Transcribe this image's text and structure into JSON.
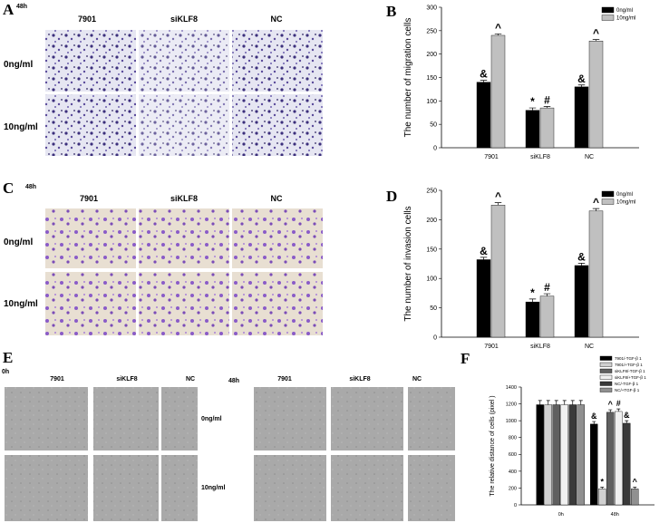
{
  "panel_labels": [
    "A",
    "B",
    "C",
    "D",
    "E",
    "F"
  ],
  "transwell_migration": {
    "time": "48h",
    "columns": [
      "7901",
      "siKLF8",
      "NC"
    ],
    "rows": [
      "0ng/ml",
      "10ng/ml"
    ]
  },
  "transwell_invasion": {
    "time": "48h",
    "columns": [
      "7901",
      "siKLF8",
      "NC"
    ],
    "rows": [
      "0ng/ml",
      "10ng/ml"
    ]
  },
  "wound_healing": {
    "times": [
      "0h",
      "48h"
    ],
    "columns": [
      "7901",
      "siKLF8",
      "NC"
    ],
    "rows": [
      "0ng/ml",
      "10ng/ml"
    ]
  },
  "chart_data": [
    {
      "type": "bar",
      "y_label": "The number of migration cells",
      "categories": [
        "7901",
        "siKLF8",
        "NC"
      ],
      "ylim": [
        0,
        300
      ],
      "yticks": [
        0,
        50,
        100,
        150,
        200,
        250,
        300
      ],
      "legend": "upper right",
      "series": [
        {
          "name": "0ng/ml",
          "color": "#000000",
          "values": [
            140,
            80,
            130
          ],
          "errors": [
            4,
            5,
            4
          ],
          "markers": [
            "&",
            "*",
            "&"
          ]
        },
        {
          "name": "10ng/ml",
          "color": "#c0c0c0",
          "values": [
            240,
            85,
            228
          ],
          "errors": [
            3,
            3,
            3
          ],
          "markers": [
            "^",
            "#",
            "^"
          ]
        }
      ]
    },
    {
      "type": "bar",
      "y_label": "The number of invasion cells",
      "categories": [
        "7901",
        "siKLF8",
        "NC"
      ],
      "ylim": [
        0,
        250
      ],
      "yticks": [
        0,
        50,
        100,
        150,
        200,
        250
      ],
      "legend": "upper right",
      "series": [
        {
          "name": "0ng/ml",
          "color": "#000000",
          "values": [
            132,
            60,
            122
          ],
          "errors": [
            4,
            5,
            4
          ],
          "markers": [
            "&",
            "*",
            "&"
          ]
        },
        {
          "name": "10ng/ml",
          "color": "#c0c0c0",
          "values": [
            225,
            70,
            215
          ],
          "errors": [
            4,
            4,
            4
          ],
          "markers": [
            "^",
            "#",
            "^"
          ]
        }
      ]
    },
    {
      "type": "bar",
      "y_label": "The relative distance of cells (pixel )",
      "categories": [
        "0h",
        "48h"
      ],
      "ylim": [
        0,
        1400
      ],
      "yticks": [
        0,
        200,
        400,
        600,
        800,
        1000,
        1200,
        1400
      ],
      "legend": "upper right",
      "series": [
        {
          "name": "7901/-TGF-β 1",
          "color": "#000000",
          "values": [
            1190,
            960
          ],
          "errors": [
            50,
            30
          ],
          "markers": [
            null,
            "&"
          ]
        },
        {
          "name": "7901/+TGF-β 1",
          "color": "#d0d0d0",
          "values": [
            1190,
            190
          ],
          "errors": [
            50,
            20
          ],
          "markers": [
            null,
            "*"
          ]
        },
        {
          "name": "siKLF8/-TGF-β 1",
          "color": "#606060",
          "values": [
            1190,
            1100
          ],
          "errors": [
            50,
            30
          ],
          "markers": [
            null,
            "^"
          ]
        },
        {
          "name": "siKLF8/+TGF-β 1",
          "color": "#f0f0f0",
          "values": [
            1190,
            1110
          ],
          "errors": [
            50,
            30
          ],
          "markers": [
            null,
            "#"
          ]
        },
        {
          "name": "NC/-TGF-β 1",
          "color": "#3a3a3a",
          "values": [
            1190,
            970
          ],
          "errors": [
            50,
            30
          ],
          "markers": [
            null,
            "&"
          ]
        },
        {
          "name": "NC/+TGF-β 1",
          "color": "#909090",
          "values": [
            1190,
            190
          ],
          "errors": [
            50,
            20
          ],
          "markers": [
            null,
            "^"
          ]
        }
      ]
    }
  ]
}
